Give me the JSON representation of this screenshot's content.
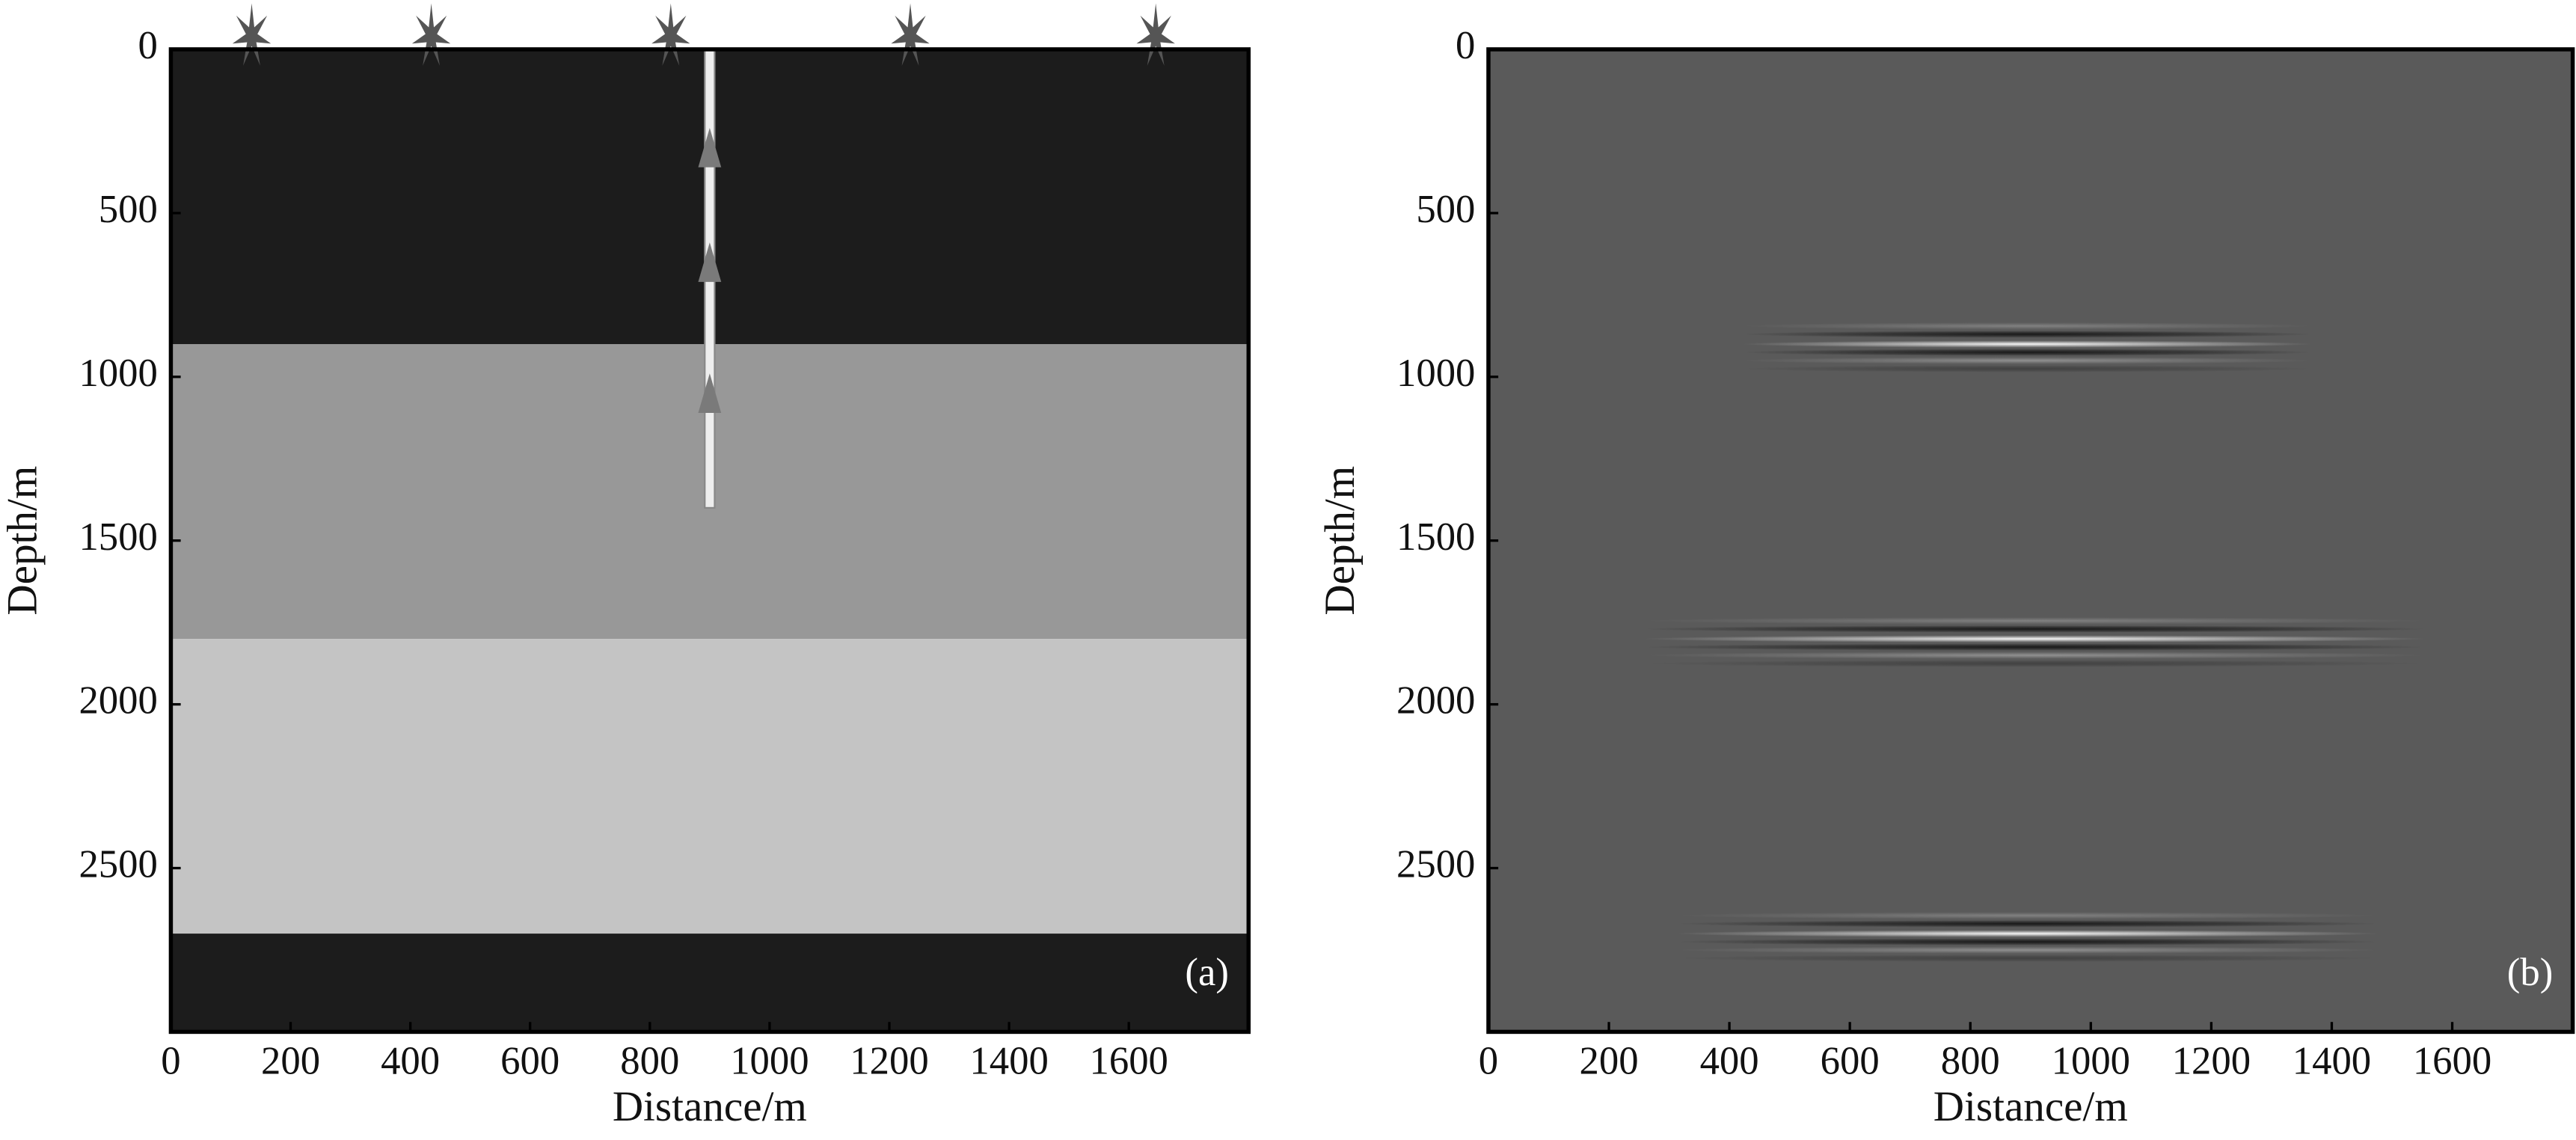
{
  "chart_data": [
    {
      "type": "layers",
      "panel_label": "(a)",
      "x_label": "Distance/m",
      "y_label": "Depth/m",
      "xlim": [
        0,
        1800
      ],
      "ylim": [
        3000,
        0
      ],
      "xticks": [
        0,
        200,
        400,
        600,
        800,
        1000,
        1200,
        1400,
        1600
      ],
      "yticks": [
        0,
        500,
        1000,
        1500,
        2000,
        2500
      ],
      "layers": [
        {
          "top": 0,
          "bottom": 900,
          "color": "#1c1c1c"
        },
        {
          "top": 900,
          "bottom": 1800,
          "color": "#989898"
        },
        {
          "top": 1800,
          "bottom": 2700,
          "color": "#c4c4c4"
        },
        {
          "top": 2700,
          "bottom": 3000,
          "color": "#1c1c1c"
        }
      ],
      "sources": {
        "x": [
          135,
          435,
          835,
          1235,
          1645
        ],
        "color": "#555555"
      },
      "well": {
        "x": 900,
        "bottom": 1400,
        "receivers": [
          300,
          650,
          1050
        ],
        "receiver_color": "#7a7a7a"
      }
    },
    {
      "type": "reflections",
      "panel_label": "(b)",
      "x_label": "Distance/m",
      "y_label": "Depth/m",
      "xlim": [
        0,
        1800
      ],
      "ylim": [
        3000,
        0
      ],
      "xticks": [
        0,
        200,
        400,
        600,
        800,
        1000,
        1200,
        1400,
        1600
      ],
      "yticks": [
        0,
        500,
        1000,
        1500,
        2000,
        2500
      ],
      "background": "#5a5a5a",
      "reflectors": [
        {
          "depth": 900,
          "x": [
            420,
            1370
          ]
        },
        {
          "depth": 1800,
          "x": [
            255,
            1560
          ]
        },
        {
          "depth": 2700,
          "x": [
            310,
            1480
          ]
        }
      ]
    }
  ]
}
